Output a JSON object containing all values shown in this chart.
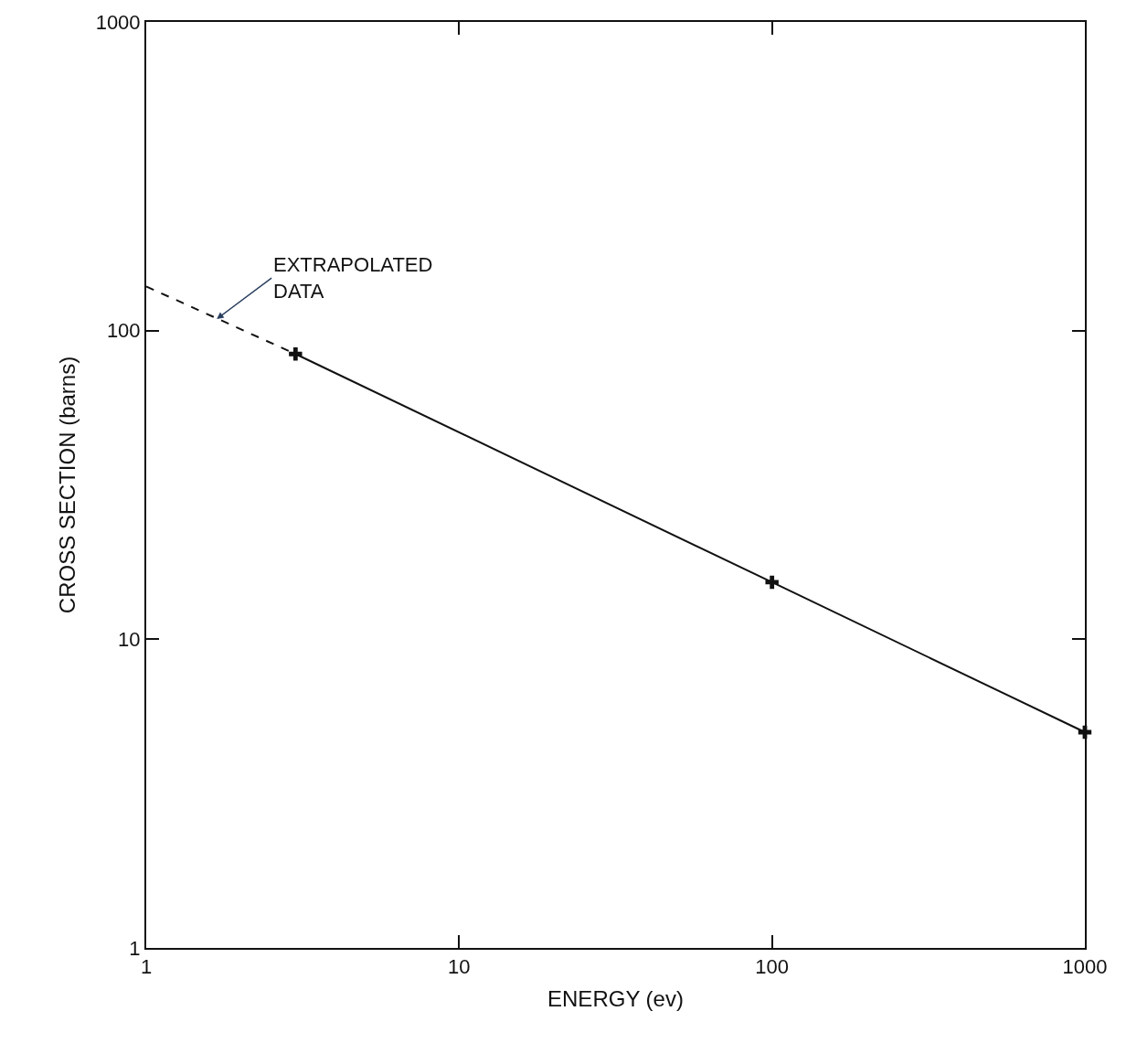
{
  "chart_data": {
    "type": "line",
    "xlabel": "ENERGY (ev)",
    "ylabel": "CROSS SECTION (barns)",
    "log": "xy",
    "xlim": [
      1,
      1000
    ],
    "ylim": [
      1,
      1000
    ],
    "xticks": [
      1,
      10,
      100,
      1000
    ],
    "yticks": [
      1,
      10,
      100,
      1000
    ],
    "series": [
      {
        "color": "#111111",
        "x": [
          3,
          100,
          1000
        ],
        "values": [
          84,
          15.3,
          5.0
        ],
        "marker": "cross",
        "line_style": "solid"
      },
      {
        "color": "#111111",
        "x": [
          1,
          3
        ],
        "values": [
          139,
          84
        ],
        "marker": "none",
        "line_style": "dashed"
      }
    ],
    "annotations": [
      {
        "text": "EXTRAPOLATED\nDATA",
        "x": 1.68,
        "y": 109
      }
    ]
  }
}
